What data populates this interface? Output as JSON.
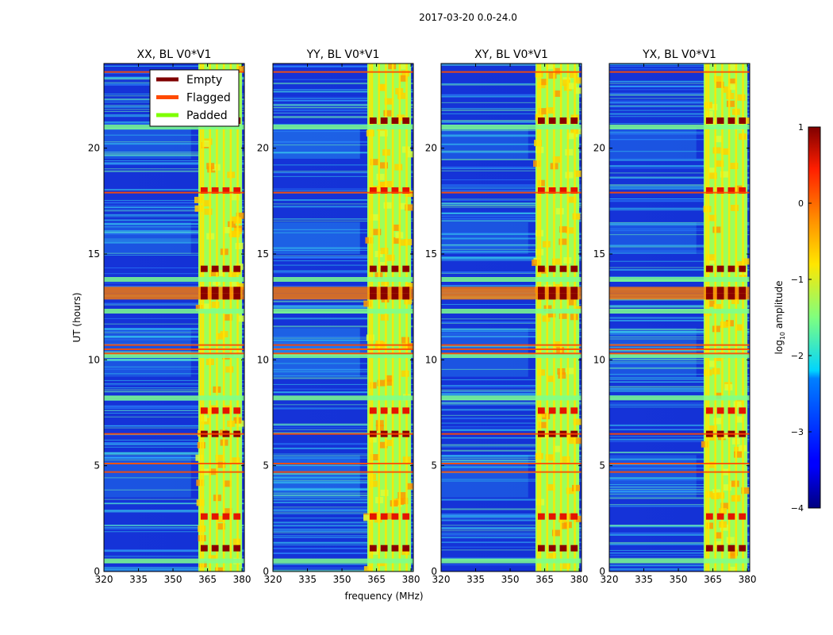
{
  "figure_title": "2017-03-20 0.0-24.0",
  "chart_data": {
    "type": "heatmap",
    "suptitle": "2017-03-20 0.0-24.0",
    "xlabel": "frequency (MHz)",
    "ylabel": "UT (hours)",
    "xlim": [
      320,
      381
    ],
    "ylim": [
      0,
      24
    ],
    "xticks": [
      320,
      335,
      350,
      365,
      380
    ],
    "yticks": [
      0,
      5,
      10,
      15,
      20
    ],
    "panels": [
      {
        "title": "XX, BL V0*V1",
        "polarization": "XX"
      },
      {
        "title": "YY, BL V0*V1",
        "polarization": "YY"
      },
      {
        "title": "XY, BL V0*V1",
        "polarization": "XY"
      },
      {
        "title": "YX, BL V0*V1",
        "polarization": "YX"
      }
    ],
    "legend": {
      "location": "top-right of first panel",
      "entries": [
        {
          "label": "Empty",
          "color": "#7f0000"
        },
        {
          "label": "Flagged",
          "color": "#ff4a00"
        },
        {
          "label": "Padded",
          "color": "#7fff00"
        }
      ]
    },
    "colorbar": {
      "label": "log10 amplitude",
      "range": [
        -4,
        1
      ],
      "ticks": [
        1,
        0,
        -1,
        -2,
        -3,
        -4
      ],
      "tick_labels": [
        "1",
        "0",
        "−1",
        "−2",
        "−3",
        "−4"
      ],
      "colormap": "jet"
    },
    "rfi_band_mhz": [
      361,
      380
    ],
    "rfi_channels_mhz": [
      362,
      363,
      366,
      369,
      372,
      375,
      378
    ],
    "bright_rows_ut": [
      1.1,
      2.6,
      6.5,
      7.6,
      13.0,
      13.3,
      14.3,
      18.0,
      21.3
    ],
    "padded_rows_ut": [
      0.5,
      8.2,
      10.2,
      12.3,
      13.8,
      21.0
    ],
    "flagged_rows_ut": [
      4.7,
      5.1,
      6.5,
      10.3,
      10.5,
      10.7,
      17.9,
      23.6
    ]
  }
}
